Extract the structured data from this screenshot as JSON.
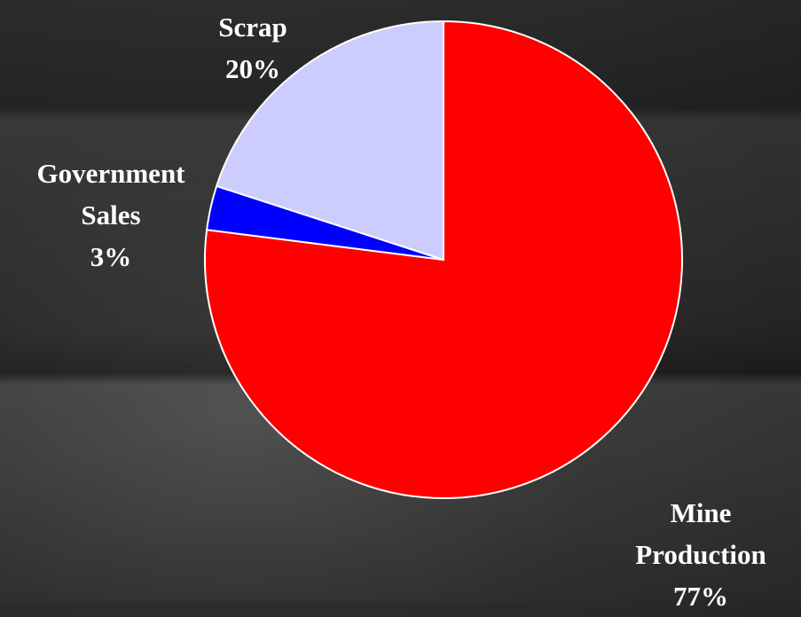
{
  "chart_data": {
    "type": "pie",
    "categories": [
      "Mine Production",
      "Government Sales",
      "Scrap"
    ],
    "values": [
      77,
      3,
      20
    ],
    "value_labels": [
      "77%",
      "3%",
      "20%"
    ],
    "colors": [
      "#ff0000",
      "#0000ff",
      "#ccccff"
    ]
  }
}
